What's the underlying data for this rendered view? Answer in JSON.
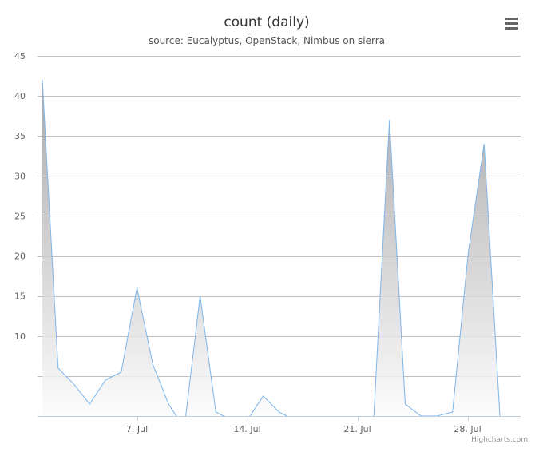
{
  "chart_data": {
    "type": "area",
    "title": "count (daily)",
    "subtitle": "source: Eucalyptus, OpenStack, Nimbus on sierra",
    "xlabel": "",
    "ylabel": "",
    "ylim": [
      0,
      45
    ],
    "y_ticks": [
      10,
      15,
      20,
      25,
      30,
      35,
      40,
      45
    ],
    "x_ticks": [
      {
        "label": "7. Jul",
        "day": 7
      },
      {
        "label": "14. Jul",
        "day": 14
      },
      {
        "label": "21. Jul",
        "day": 21
      },
      {
        "label": "28. Jul",
        "day": 28
      }
    ],
    "x_unit": "day of July",
    "x": [
      1,
      2,
      3,
      4,
      5,
      6,
      7,
      8,
      9,
      10,
      11,
      12,
      13,
      14,
      15,
      16,
      17,
      18,
      19,
      20,
      21,
      22,
      23,
      24,
      25,
      26,
      27,
      28,
      29,
      30
    ],
    "series": [
      {
        "values": [
          42,
          6,
          4,
          1.5,
          4.5,
          5.5,
          16,
          6.5,
          1.5,
          -1.5,
          15,
          0.5,
          -0.5,
          -0.5,
          2.5,
          0.5,
          -0.5,
          -0.5,
          -0.5,
          -0.5,
          -0.5,
          -0.5,
          37,
          1.5,
          0,
          0,
          0.5,
          20.5,
          34,
          0
        ]
      }
    ],
    "grid": true,
    "legend": "none",
    "colors": {
      "line": "#7cb5ec",
      "fill_top": "#9a9a9a",
      "fill_bottom": "#ffffff",
      "grid": "#c0c0c0",
      "axis": "#c0d0e0"
    }
  },
  "credits": "Highcharts.com",
  "menu_icon": "hamburger-menu-icon"
}
